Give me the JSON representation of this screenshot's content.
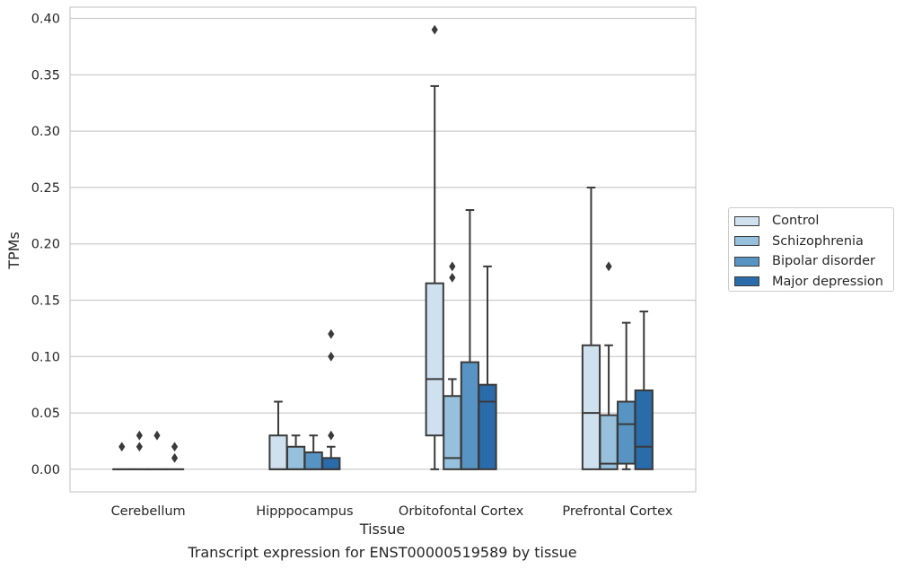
{
  "chart_data": {
    "type": "box",
    "ylabel": "TPMs",
    "xlabel": "Tissue",
    "caption": "Transcript expression for ENST00000519589 by tissue",
    "ylim": [
      -0.02,
      0.41
    ],
    "yticks": [
      "0.00",
      "0.05",
      "0.10",
      "0.15",
      "0.20",
      "0.25",
      "0.30",
      "0.35",
      "0.40"
    ],
    "grid": "horizontal",
    "legend_position": "right",
    "categories": [
      "Cerebellum",
      "Hipppocampus",
      "Orbitofontal Cortex",
      "Prefrontal Cortex"
    ],
    "series": [
      {
        "name": "Control",
        "color": "#cfe0ef",
        "boxes": [
          {
            "whisker_low": 0,
            "q1": 0,
            "median": 0,
            "q3": 0,
            "whisker_high": 0,
            "outliers": [
              0.02
            ]
          },
          {
            "whisker_low": 0,
            "q1": 0,
            "median": 0,
            "q3": 0.03,
            "whisker_high": 0.06,
            "outliers": []
          },
          {
            "whisker_low": 0,
            "q1": 0.03,
            "median": 0.08,
            "q3": 0.165,
            "whisker_high": 0.34,
            "outliers": [
              0.39
            ]
          },
          {
            "whisker_low": 0,
            "q1": 0,
            "median": 0.05,
            "q3": 0.11,
            "whisker_high": 0.25,
            "outliers": []
          }
        ]
      },
      {
        "name": "Schizophrenia",
        "color": "#97c0dd",
        "boxes": [
          {
            "whisker_low": 0,
            "q1": 0,
            "median": 0,
            "q3": 0,
            "whisker_high": 0,
            "outliers": [
              0.02,
              0.03
            ]
          },
          {
            "whisker_low": 0,
            "q1": 0,
            "median": 0,
            "q3": 0.02,
            "whisker_high": 0.03,
            "outliers": []
          },
          {
            "whisker_low": 0,
            "q1": 0,
            "median": 0.01,
            "q3": 0.065,
            "whisker_high": 0.08,
            "outliers": [
              0.17,
              0.18
            ]
          },
          {
            "whisker_low": 0,
            "q1": 0,
            "median": 0.005,
            "q3": 0.048,
            "whisker_high": 0.11,
            "outliers": [
              0.18
            ]
          }
        ]
      },
      {
        "name": "Bipolar disorder",
        "color": "#5894c3",
        "boxes": [
          {
            "whisker_low": 0,
            "q1": 0,
            "median": 0,
            "q3": 0,
            "whisker_high": 0,
            "outliers": [
              0.03
            ]
          },
          {
            "whisker_low": 0,
            "q1": 0,
            "median": 0,
            "q3": 0.015,
            "whisker_high": 0.03,
            "outliers": []
          },
          {
            "whisker_low": 0,
            "q1": 0,
            "median": 0,
            "q3": 0.095,
            "whisker_high": 0.23,
            "outliers": []
          },
          {
            "whisker_low": 0,
            "q1": 0.005,
            "median": 0.04,
            "q3": 0.06,
            "whisker_high": 0.13,
            "outliers": []
          }
        ]
      },
      {
        "name": "Major depression",
        "color": "#2a6ba9",
        "boxes": [
          {
            "whisker_low": 0,
            "q1": 0,
            "median": 0,
            "q3": 0,
            "whisker_high": 0,
            "outliers": [
              0.01,
              0.02
            ]
          },
          {
            "whisker_low": 0,
            "q1": 0,
            "median": 0,
            "q3": 0.01,
            "whisker_high": 0.02,
            "outliers": [
              0.03,
              0.1,
              0.12
            ]
          },
          {
            "whisker_low": 0,
            "q1": 0,
            "median": 0.06,
            "q3": 0.075,
            "whisker_high": 0.18,
            "outliers": []
          },
          {
            "whisker_low": 0,
            "q1": 0,
            "median": 0.02,
            "q3": 0.07,
            "whisker_high": 0.14,
            "outliers": []
          }
        ]
      }
    ]
  }
}
